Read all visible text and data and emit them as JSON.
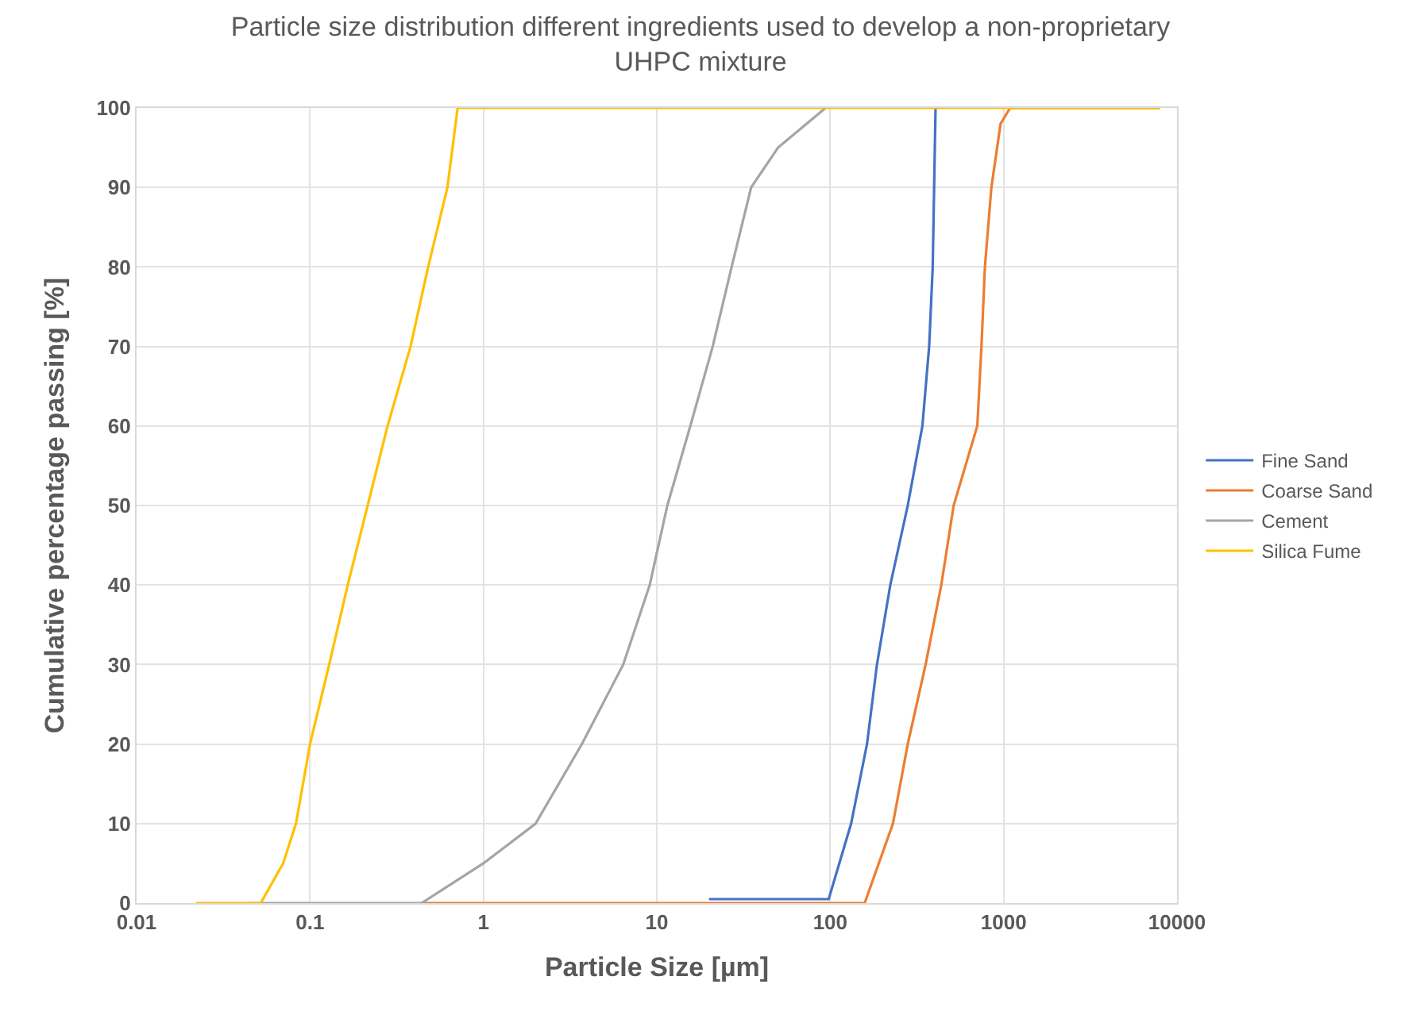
{
  "chart_data": {
    "type": "line",
    "title": "Particle size distribution different ingredients used to develop a non-proprietary UHPC mixture",
    "xlabel": "Particle Size [µm]",
    "ylabel": "Cumulative percentage passing [%]",
    "log": "x",
    "xlim": [
      0.01,
      10000
    ],
    "xticks": [
      0.01,
      0.1,
      1,
      10,
      100,
      1000,
      10000
    ],
    "ylim": [
      0,
      100
    ],
    "yticks": [
      0,
      10,
      20,
      30,
      40,
      50,
      60,
      70,
      80,
      90,
      100
    ],
    "grid": true,
    "legend": "right",
    "marker": "none",
    "line_style": "solid",
    "series": [
      {
        "name": "Fine Sand",
        "color": "#4472c4",
        "x": [
          20,
          98,
          132,
          163,
          186,
          222,
          280,
          340,
          372,
          390,
          405
        ],
        "values": [
          0.5,
          0.5,
          10,
          20,
          30,
          40,
          50,
          60,
          70,
          80,
          100
        ]
      },
      {
        "name": "Coarse Sand",
        "color": "#ed7d31",
        "x": [
          0.44,
          158,
          230,
          280,
          355,
          437,
          515,
          705,
          745,
          780,
          850,
          960,
          1090,
          8000
        ],
        "values": [
          0,
          0,
          10,
          20,
          30,
          40,
          50,
          60,
          70,
          80,
          90,
          98,
          100,
          100
        ]
      },
      {
        "name": "Cement",
        "color": "#a5a5a5",
        "x": [
          0.043,
          0.44,
          1,
          2,
          3.7,
          6.4,
          9.1,
          11.5,
          15.6,
          21,
          27,
          35,
          50,
          94
        ],
        "values": [
          0,
          0,
          5,
          10,
          20,
          30,
          40,
          50,
          60,
          70,
          80,
          90,
          95,
          100
        ]
      },
      {
        "name": "Silica Fume",
        "color": "#ffc000",
        "x": [
          0.022,
          0.052,
          0.07,
          0.083,
          0.1,
          0.129,
          0.165,
          0.215,
          0.28,
          0.38,
          0.48,
          0.62,
          0.71,
          8000
        ],
        "values": [
          0,
          0,
          5,
          10,
          20,
          30,
          40,
          50,
          60,
          70,
          80,
          90,
          100,
          100
        ]
      }
    ]
  }
}
